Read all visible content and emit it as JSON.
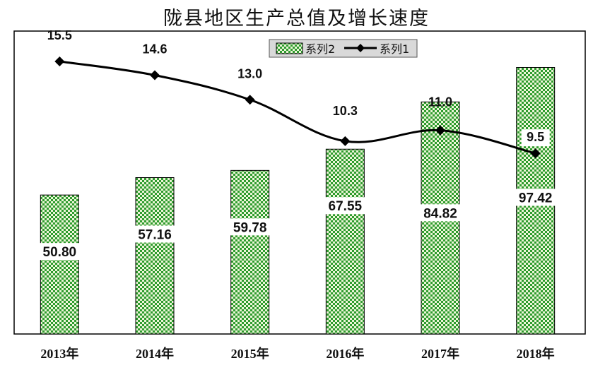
{
  "chart_data": {
    "type": "bar",
    "title": "陇县地区生产总值及增长速度",
    "categories": [
      "2013年",
      "2014年",
      "2015年",
      "2016年",
      "2017年",
      "2018年"
    ],
    "series": [
      {
        "name": "系列2",
        "type": "bar",
        "values": [
          50.8,
          57.16,
          59.78,
          67.55,
          84.82,
          97.42
        ],
        "labels": [
          "50.80",
          "57.16",
          "59.78",
          "67.55",
          "84.82",
          "97.42"
        ],
        "color": "#2e9b2e"
      },
      {
        "name": "系列1",
        "type": "line",
        "values": [
          15.5,
          14.6,
          13.0,
          10.3,
          11.0,
          9.5
        ],
        "labels": [
          "15.5",
          "14.6",
          "13.0",
          "10.3",
          "11.0",
          "9.5"
        ],
        "color": "#000000"
      }
    ],
    "legend_position": "top-center",
    "grid": false,
    "xlabel": "",
    "ylabel": ""
  }
}
